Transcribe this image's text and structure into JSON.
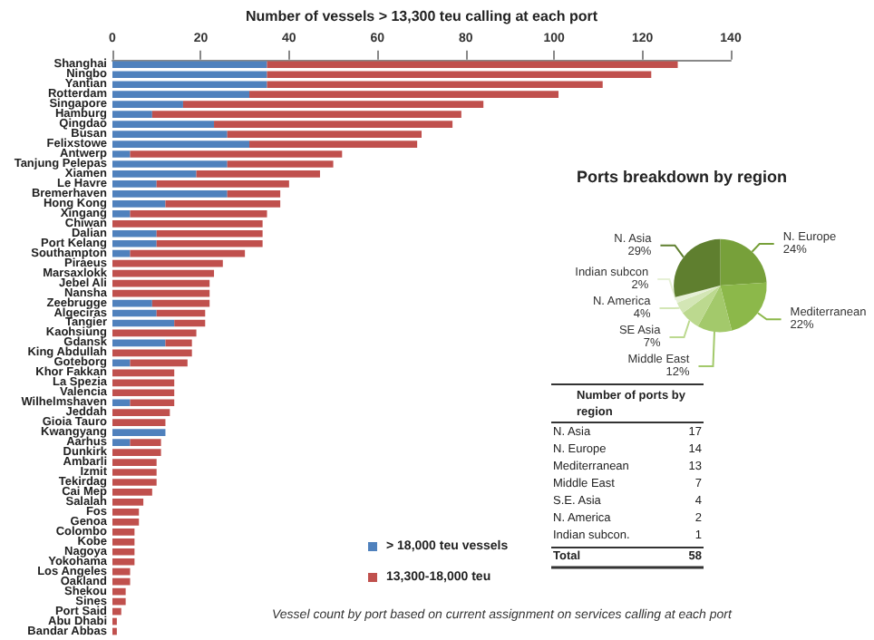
{
  "chart_data": [
    {
      "type": "bar",
      "orientation": "horizontal",
      "stacked": true,
      "xlabel": "Number of vessels > 13,300 teu calling at each port",
      "categories": [
        "Shanghai",
        "Ningbo",
        "Yantian",
        "Rotterdam",
        "Singapore",
        "Hamburg",
        "Qingdao",
        "Busan",
        "Felixstowe",
        "Antwerp",
        "Tanjung Pelepas",
        "Xiamen",
        "Le Havre",
        "Bremerhaven",
        "Hong Kong",
        "Xingang",
        "Chiwan",
        "Dalian",
        "Port Kelang",
        "Southampton",
        "Piraeus",
        "Marsaxlokk",
        "Jebel Ali",
        "Nansha",
        "Zeebrugge",
        "Algeciras",
        "Tangier",
        "Kaohsiung",
        "Gdansk",
        "King Abdullah",
        "Goteborg",
        "Khor Fakkan",
        "La Spezia",
        "Valencia",
        "Wilhelmshaven",
        "Jeddah",
        "Gioia Tauro",
        "Kwangyang",
        "Aarhus",
        "Dunkirk",
        "Ambarli",
        "Izmit",
        "Tekirdag",
        "Cai Mep",
        "Salalah",
        "Fos",
        "Genoa",
        "Colombo",
        "Kobe",
        "Nagoya",
        "Yokohama",
        "Los Angeles",
        "Oakland",
        "Shekou",
        "Sines",
        "Port Said",
        "Abu Dhabi",
        "Bandar Abbas"
      ],
      "series": [
        {
          "name": "> 18,000 teu vessels",
          "color": "#4f81bd",
          "values": [
            35,
            35,
            35,
            31,
            16,
            9,
            23,
            26,
            31,
            4,
            26,
            19,
            10,
            26,
            12,
            4,
            0,
            10,
            10,
            4,
            0,
            0,
            0,
            0,
            9,
            10,
            14,
            0,
            12,
            0,
            4,
            0,
            0,
            0,
            4,
            0,
            0,
            12,
            4,
            0,
            0,
            0,
            0,
            0,
            0,
            0,
            0,
            0,
            0,
            0,
            0,
            0,
            0,
            0,
            0,
            0,
            0,
            0
          ]
        },
        {
          "name": "13,300-18,000 teu",
          "color": "#c0504d",
          "values": [
            93,
            87,
            76,
            70,
            68,
            70,
            54,
            44,
            38,
            48,
            24,
            28,
            30,
            12,
            26,
            31,
            34,
            24,
            24,
            26,
            25,
            23,
            22,
            22,
            13,
            11,
            7,
            19,
            6,
            18,
            13,
            14,
            14,
            14,
            10,
            13,
            12,
            0,
            7,
            11,
            10,
            10,
            10,
            9,
            7,
            6,
            6,
            5,
            5,
            5,
            5,
            4,
            4,
            3,
            3,
            2,
            1,
            1
          ]
        }
      ],
      "xlim": [
        0,
        140
      ],
      "xticks": [
        0,
        20,
        40,
        60,
        80,
        100,
        120,
        140
      ],
      "grid": false,
      "legend": "bottom right",
      "annotations": [
        "Vessel count by port based on current assignment on services calling at each port"
      ]
    },
    {
      "type": "pie",
      "title": "Ports breakdown by region",
      "categories": [
        "N. Europe",
        "Mediterranean",
        "Middle East",
        "SE Asia",
        "N. America",
        "Indian subcon",
        "N. Asia"
      ],
      "values": [
        24,
        22,
        12,
        7,
        4,
        2,
        29
      ],
      "value_labels": [
        "24%",
        "22%",
        "12%",
        "7%",
        "4%",
        "2%",
        "29%"
      ],
      "colors": [
        "#77a03a",
        "#8cb84a",
        "#a3c96b",
        "#bcd98f",
        "#d3e6b5",
        "#e6f0d6",
        "#5f7f2f"
      ]
    },
    {
      "type": "other",
      "title": "Number of ports by region",
      "categories": [
        "N. Asia",
        "N. Europe",
        "Mediterranean",
        "Middle East",
        "S.E. Asia",
        "N. America",
        "Indian subcon.",
        "Total"
      ],
      "values": [
        17,
        14,
        13,
        7,
        4,
        2,
        1,
        58
      ],
      "data_labels": true
    }
  ]
}
